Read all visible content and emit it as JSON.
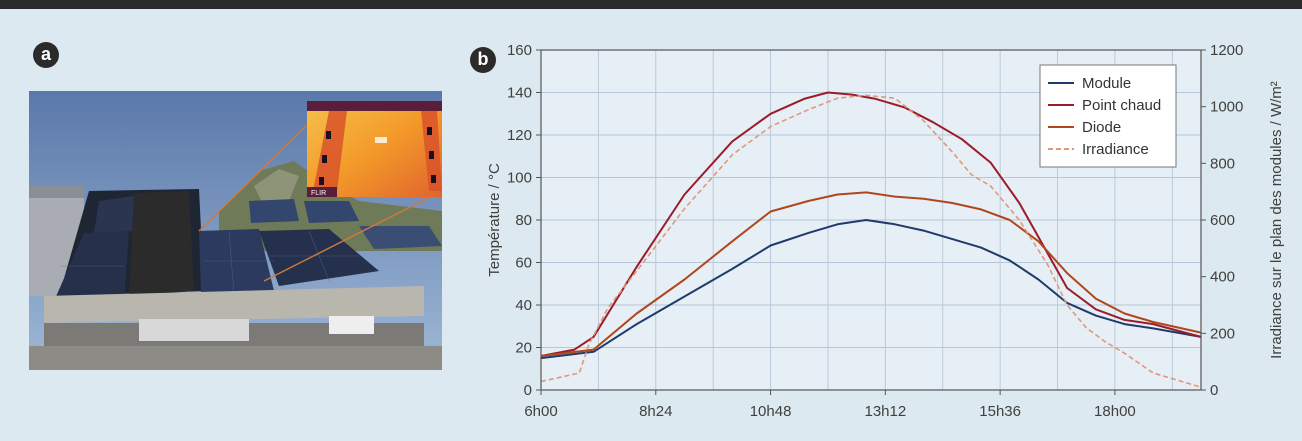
{
  "panels": {
    "a_label": "a",
    "b_label": "b"
  },
  "photo": {
    "description_icon": "solar-panel-photo",
    "inset_icon": "thermal-camera-inset",
    "inset_brand": "FLIR"
  },
  "chart_data": {
    "type": "line",
    "xlabel": "",
    "ylabel": "Température / °C",
    "y2label": "Irradiance sur le plan des modules / W/m²",
    "x_tick_labels": [
      "6h00",
      "8h24",
      "10h48",
      "13h12",
      "15h36",
      "18h00"
    ],
    "x_tick_hours": [
      6,
      8.4,
      10.8,
      13.2,
      15.6,
      18.0
    ],
    "xlim": [
      6,
      19.8
    ],
    "ylim": [
      0,
      160
    ],
    "y_ticks": [
      0,
      20,
      40,
      60,
      80,
      100,
      120,
      140,
      160
    ],
    "y2lim": [
      0,
      1200
    ],
    "y2_ticks": [
      0,
      200,
      400,
      600,
      800,
      1000,
      1200
    ],
    "grid": true,
    "legend_position": "top-right",
    "series": [
      {
        "name": "Module",
        "color": "#1f3a6b",
        "dash": false,
        "axis": "left",
        "x": [
          6,
          7.1,
          8.0,
          9.0,
          10.0,
          10.8,
          11.6,
          12.2,
          12.8,
          13.4,
          14.0,
          14.6,
          15.2,
          15.8,
          16.4,
          17.0,
          17.6,
          18.2,
          18.8,
          19.8
        ],
        "y": [
          15,
          18,
          31,
          44,
          57,
          68,
          74,
          78,
          80,
          78,
          75,
          71,
          67,
          61,
          52,
          41,
          35,
          31,
          29,
          25
        ]
      },
      {
        "name": "Point chaud",
        "color": "#9b1b2a",
        "dash": false,
        "axis": "left",
        "x": [
          6,
          6.7,
          7.1,
          8.0,
          9.0,
          10.0,
          10.8,
          11.5,
          12.0,
          12.5,
          13.0,
          13.6,
          14.2,
          14.8,
          15.4,
          16.0,
          16.6,
          17.0,
          17.6,
          18.2,
          18.8,
          19.8
        ],
        "y": [
          16,
          19,
          25,
          58,
          92,
          117,
          130,
          137,
          140,
          139,
          137,
          133,
          126,
          118,
          107,
          88,
          64,
          48,
          38,
          33,
          31,
          25
        ]
      },
      {
        "name": "Diode",
        "color": "#b0461c",
        "dash": false,
        "axis": "left",
        "x": [
          6,
          7.1,
          8.0,
          9.0,
          10.0,
          10.8,
          11.6,
          12.2,
          12.8,
          13.4,
          14.0,
          14.6,
          15.2,
          15.8,
          16.4,
          17.0,
          17.6,
          18.2,
          18.8,
          19.8
        ],
        "y": [
          16,
          19,
          36,
          52,
          70,
          84,
          89,
          92,
          93,
          91,
          90,
          88,
          85,
          80,
          70,
          55,
          43,
          36,
          32,
          27
        ]
      },
      {
        "name": "Irradiance",
        "color": "#e0987a",
        "dash": true,
        "axis": "right",
        "x": [
          6,
          6.8,
          7.0,
          7.4,
          8.0,
          9.0,
          10.0,
          10.8,
          11.6,
          12.2,
          12.8,
          13.4,
          14.0,
          14.6,
          15.0,
          15.4,
          16.0,
          16.6,
          17.0,
          17.4,
          17.8,
          18.2,
          18.8,
          19.8
        ],
        "y": [
          30,
          60,
          160,
          290,
          420,
          640,
          830,
          930,
          990,
          1030,
          1040,
          1030,
          950,
          840,
          760,
          720,
          600,
          440,
          300,
          220,
          170,
          130,
          60,
          10
        ]
      }
    ]
  }
}
